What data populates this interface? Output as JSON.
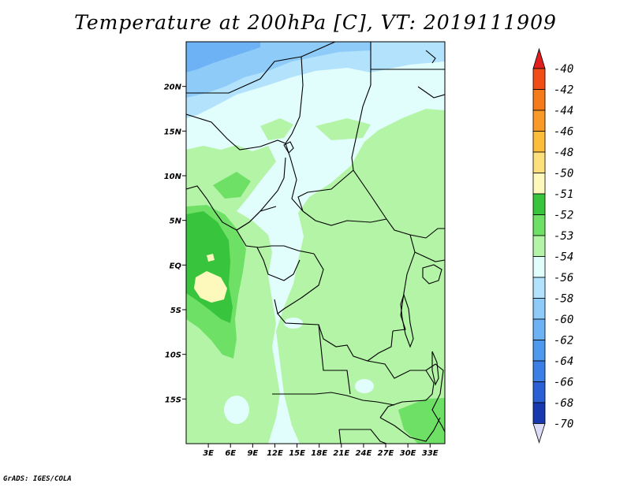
{
  "title": "Temperature at 200hPa [C], VT: 2019111909",
  "footer": "GrADS: IGES/COLA",
  "map": {
    "lat_labels": [
      "20N",
      "15N",
      "10N",
      "5N",
      "EQ",
      "5S",
      "10S",
      "15S"
    ],
    "lat_values": [
      20,
      15,
      10,
      5,
      0,
      -5,
      -10,
      -15
    ],
    "lon_labels": [
      "3E",
      "6E",
      "9E",
      "12E",
      "15E",
      "18E",
      "21E",
      "24E",
      "27E",
      "30E",
      "33E"
    ],
    "lon_values": [
      3,
      6,
      9,
      12,
      15,
      18,
      21,
      24,
      27,
      30,
      33
    ],
    "lat_range": [
      -20,
      25
    ],
    "lon_range": [
      0,
      35
    ]
  },
  "colorbar": {
    "labels": [
      "-40",
      "-42",
      "-44",
      "-46",
      "-48",
      "-50",
      "-51",
      "-52",
      "-53",
      "-54",
      "-56",
      "-58",
      "-60",
      "-62",
      "-64",
      "-66",
      "-68",
      "-70"
    ],
    "colors": [
      "#e11e1e",
      "#f04e16",
      "#f57a1a",
      "#f99a28",
      "#fbbd3a",
      "#fde07c",
      "#fdf9bd",
      "#38c43c",
      "#6fe066",
      "#b4f4a6",
      "#e1fdfc",
      "#b3e3fc",
      "#8ecbf8",
      "#6cb2f4",
      "#4e98ee",
      "#3a7ee6",
      "#2a60d4",
      "#1838b0",
      "#0c1c84",
      "#dcdcf8"
    ]
  }
}
